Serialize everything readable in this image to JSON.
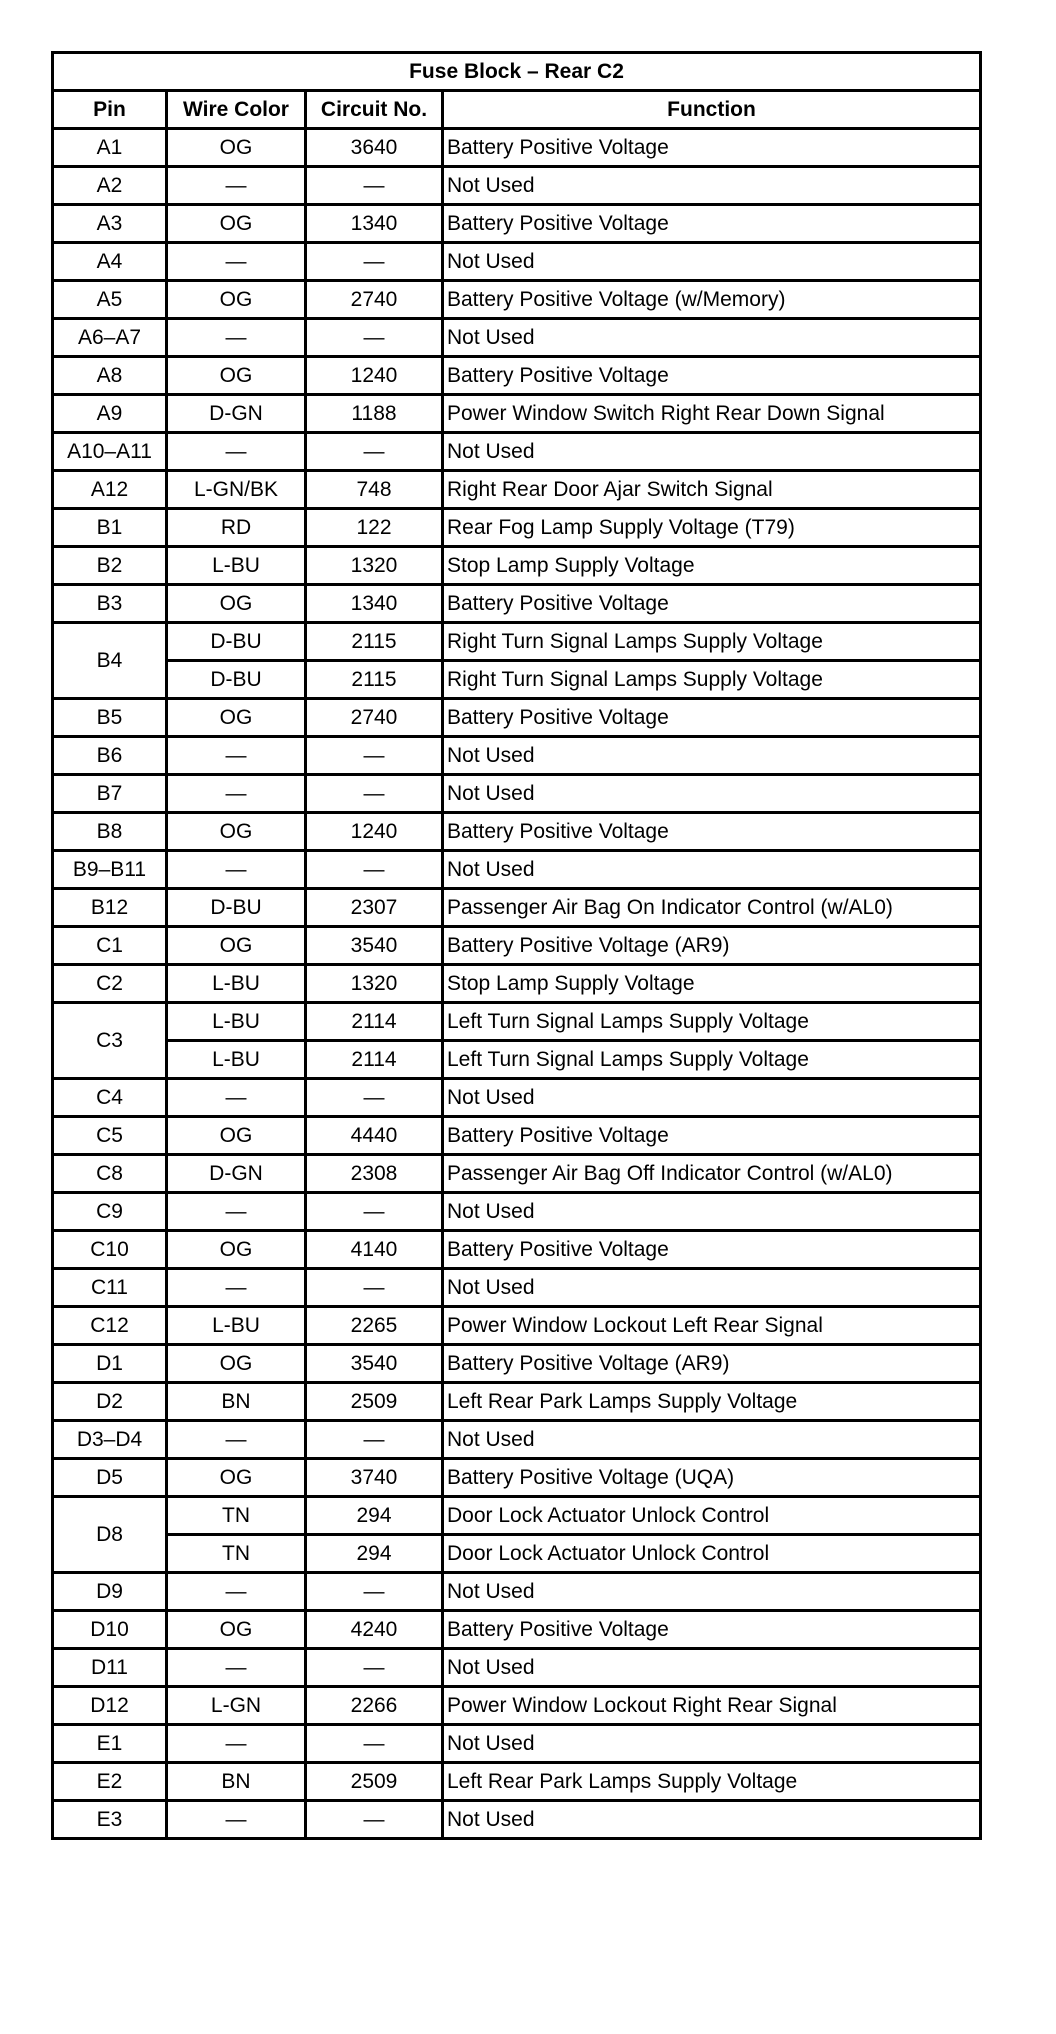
{
  "title": "Fuse Block – Rear C2",
  "headers": [
    "Pin",
    "Wire Color",
    "Circuit No.",
    "Function"
  ],
  "rows": [
    {
      "pin": "A1",
      "wires": [
        [
          "OG",
          "3640",
          "Battery Positive Voltage"
        ]
      ]
    },
    {
      "pin": "A2",
      "wires": [
        [
          "—",
          "—",
          "Not Used"
        ]
      ]
    },
    {
      "pin": "A3",
      "wires": [
        [
          "OG",
          "1340",
          "Battery Positive Voltage"
        ]
      ]
    },
    {
      "pin": "A4",
      "wires": [
        [
          "—",
          "—",
          "Not Used"
        ]
      ]
    },
    {
      "pin": "A5",
      "wires": [
        [
          "OG",
          "2740",
          "Battery Positive Voltage (w/Memory)"
        ]
      ]
    },
    {
      "pin": "A6–A7",
      "wires": [
        [
          "—",
          "—",
          "Not Used"
        ]
      ]
    },
    {
      "pin": "A8",
      "wires": [
        [
          "OG",
          "1240",
          "Battery Positive Voltage"
        ]
      ]
    },
    {
      "pin": "A9",
      "wires": [
        [
          "D-GN",
          "1188",
          "Power Window Switch Right Rear Down Signal"
        ]
      ]
    },
    {
      "pin": "A10–A11",
      "wires": [
        [
          "—",
          "—",
          "Not Used"
        ]
      ]
    },
    {
      "pin": "A12",
      "wires": [
        [
          "L-GN/BK",
          "748",
          "Right Rear Door Ajar Switch Signal"
        ]
      ]
    },
    {
      "pin": "B1",
      "wires": [
        [
          "RD",
          "122",
          "Rear Fog Lamp Supply Voltage (T79)"
        ]
      ]
    },
    {
      "pin": "B2",
      "wires": [
        [
          "L-BU",
          "1320",
          "Stop Lamp Supply Voltage"
        ]
      ]
    },
    {
      "pin": "B3",
      "wires": [
        [
          "OG",
          "1340",
          "Battery Positive Voltage"
        ]
      ]
    },
    {
      "pin": "B4",
      "wires": [
        [
          "D-BU",
          "2115",
          "Right Turn Signal Lamps Supply Voltage"
        ],
        [
          "D-BU",
          "2115",
          "Right Turn Signal Lamps Supply Voltage"
        ]
      ]
    },
    {
      "pin": "B5",
      "wires": [
        [
          "OG",
          "2740",
          "Battery Positive Voltage"
        ]
      ]
    },
    {
      "pin": "B6",
      "wires": [
        [
          "—",
          "—",
          "Not Used"
        ]
      ]
    },
    {
      "pin": "B7",
      "wires": [
        [
          "—",
          "—",
          "Not Used"
        ]
      ]
    },
    {
      "pin": "B8",
      "wires": [
        [
          "OG",
          "1240",
          "Battery Positive Voltage"
        ]
      ]
    },
    {
      "pin": "B9–B11",
      "wires": [
        [
          "—",
          "—",
          "Not Used"
        ]
      ]
    },
    {
      "pin": "B12",
      "wires": [
        [
          "D-BU",
          "2307",
          "Passenger Air Bag On Indicator Control (w/AL0)"
        ]
      ]
    },
    {
      "pin": "C1",
      "wires": [
        [
          "OG",
          "3540",
          "Battery Positive Voltage (AR9)"
        ]
      ]
    },
    {
      "pin": "C2",
      "wires": [
        [
          "L-BU",
          "1320",
          "Stop Lamp Supply Voltage"
        ]
      ]
    },
    {
      "pin": "C3",
      "wires": [
        [
          "L-BU",
          "2114",
          "Left Turn Signal Lamps Supply Voltage"
        ],
        [
          "L-BU",
          "2114",
          "Left Turn Signal Lamps Supply Voltage"
        ]
      ]
    },
    {
      "pin": "C4",
      "wires": [
        [
          "—",
          "—",
          "Not Used"
        ]
      ]
    },
    {
      "pin": "C5",
      "wires": [
        [
          "OG",
          "4440",
          "Battery Positive Voltage"
        ]
      ]
    },
    {
      "pin": "C8",
      "wires": [
        [
          "D-GN",
          "2308",
          "Passenger Air Bag Off Indicator Control (w/AL0)"
        ]
      ]
    },
    {
      "pin": "C9",
      "wires": [
        [
          "—",
          "—",
          "Not Used"
        ]
      ]
    },
    {
      "pin": "C10",
      "wires": [
        [
          "OG",
          "4140",
          "Battery Positive Voltage"
        ]
      ]
    },
    {
      "pin": "C11",
      "wires": [
        [
          "—",
          "—",
          "Not Used"
        ]
      ]
    },
    {
      "pin": "C12",
      "wires": [
        [
          "L-BU",
          "2265",
          "Power Window Lockout Left Rear Signal"
        ]
      ]
    },
    {
      "pin": "D1",
      "wires": [
        [
          "OG",
          "3540",
          "Battery Positive Voltage (AR9)"
        ]
      ]
    },
    {
      "pin": "D2",
      "wires": [
        [
          "BN",
          "2509",
          "Left Rear Park Lamps Supply Voltage"
        ]
      ]
    },
    {
      "pin": "D3–D4",
      "wires": [
        [
          "—",
          "—",
          "Not Used"
        ]
      ]
    },
    {
      "pin": "D5",
      "wires": [
        [
          "OG",
          "3740",
          "Battery Positive Voltage (UQA)"
        ]
      ]
    },
    {
      "pin": "D8",
      "wires": [
        [
          "TN",
          "294",
          "Door Lock Actuator Unlock Control"
        ],
        [
          "TN",
          "294",
          "Door Lock Actuator Unlock Control"
        ]
      ]
    },
    {
      "pin": "D9",
      "wires": [
        [
          "—",
          "—",
          "Not Used"
        ]
      ]
    },
    {
      "pin": "D10",
      "wires": [
        [
          "OG",
          "4240",
          "Battery Positive Voltage"
        ]
      ]
    },
    {
      "pin": "D11",
      "wires": [
        [
          "—",
          "—",
          "Not Used"
        ]
      ]
    },
    {
      "pin": "D12",
      "wires": [
        [
          "L-GN",
          "2266",
          "Power Window Lockout Right Rear Signal"
        ]
      ]
    },
    {
      "pin": "E1",
      "wires": [
        [
          "—",
          "—",
          "Not Used"
        ]
      ]
    },
    {
      "pin": "E2",
      "wires": [
        [
          "BN",
          "2509",
          "Left Rear Park Lamps Supply Voltage"
        ]
      ]
    },
    {
      "pin": "E3",
      "wires": [
        [
          "—",
          "—",
          "Not Used"
        ]
      ]
    }
  ]
}
